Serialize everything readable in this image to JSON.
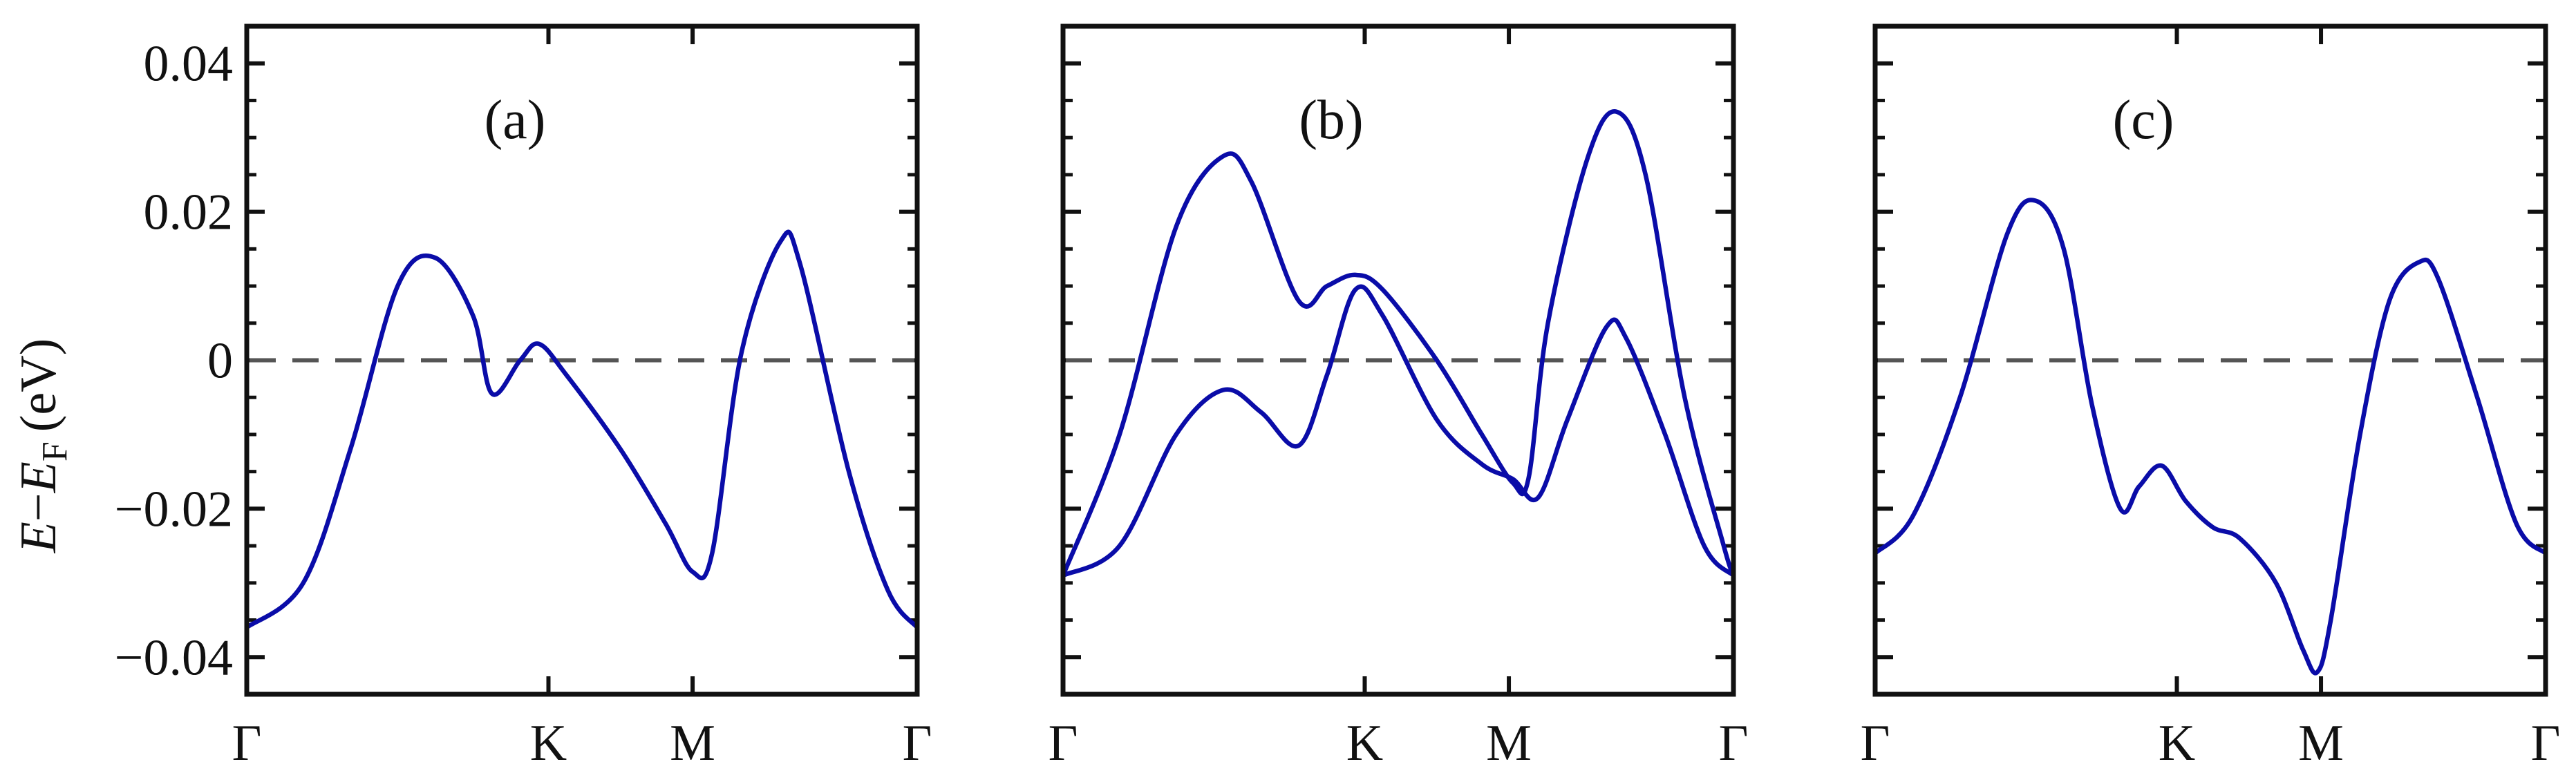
{
  "y_axis_label": {
    "E": "E",
    "minus": "−",
    "EF": "E",
    "F_sub": "F",
    "unit": "(eV)"
  },
  "chart_data": [
    {
      "type": "line",
      "panel_label": "(a)",
      "x_ticks": [
        "Γ",
        "K",
        "M",
        "Γ"
      ],
      "y_ticks": [
        "0.04",
        "0.02",
        "0",
        "−0.02",
        "−0.04"
      ],
      "ylim": [
        -0.045,
        0.045
      ],
      "y_tick_values": [
        0.04,
        0.02,
        0,
        -0.02,
        -0.04
      ],
      "reference_line": {
        "y": 0,
        "style": "dashed"
      },
      "series": [
        {
          "values": [
            [
              0,
              -0.036
            ],
            [
              0.3,
              -0.03
            ],
            [
              0.55,
              -0.012
            ],
            [
              0.8,
              0.01
            ],
            [
              1.0,
              0.0138
            ],
            [
              1.2,
              0.006
            ],
            [
              1.3,
              -0.0045
            ],
            [
              1.45,
              0.0
            ],
            [
              1.55,
              0.0022
            ],
            [
              1.7,
              -0.002
            ],
            [
              2.0,
              -0.012
            ],
            [
              2.25,
              -0.022
            ],
            [
              2.4,
              -0.0285
            ],
            [
              2.5,
              -0.026
            ],
            [
              2.65,
              0.001
            ],
            [
              2.85,
              0.016
            ],
            [
              2.95,
              0.013
            ],
            [
              3.2,
              -0.015
            ],
            [
              3.4,
              -0.031
            ],
            [
              3.55,
              -0.036
            ]
          ]
        }
      ]
    },
    {
      "type": "line",
      "panel_label": "(b)",
      "x_ticks": [
        "Γ",
        "K",
        "M",
        "Γ"
      ],
      "y_ticks": [
        "0.04",
        "0.02",
        "0",
        "−0.02",
        "−0.04"
      ],
      "ylim": [
        -0.045,
        0.045
      ],
      "y_tick_values": [
        0.04,
        0.02,
        0,
        -0.02,
        -0.04
      ],
      "reference_line": {
        "y": 0,
        "style": "dashed"
      },
      "series": [
        {
          "values": [
            [
              0,
              -0.029
            ],
            [
              0.3,
              -0.01
            ],
            [
              0.6,
              0.018
            ],
            [
              0.85,
              0.0275
            ],
            [
              1.0,
              0.024
            ],
            [
              1.25,
              0.008
            ],
            [
              1.4,
              0.01
            ],
            [
              1.55,
              0.0115
            ],
            [
              1.7,
              0.0095
            ],
            [
              2.0,
              0.0
            ],
            [
              2.25,
              -0.01
            ],
            [
              2.42,
              -0.0165
            ],
            [
              2.5,
              -0.016
            ],
            [
              2.6,
              0.005
            ],
            [
              2.8,
              0.027
            ],
            [
              2.95,
              0.0335
            ],
            [
              3.1,
              0.025
            ],
            [
              3.3,
              -0.005
            ],
            [
              3.5,
              -0.025
            ],
            [
              3.55,
              -0.029
            ]
          ]
        },
        {
          "values": [
            [
              0,
              -0.029
            ],
            [
              0.3,
              -0.025
            ],
            [
              0.6,
              -0.01
            ],
            [
              0.85,
              -0.004
            ],
            [
              1.05,
              -0.007
            ],
            [
              1.25,
              -0.0115
            ],
            [
              1.4,
              -0.002
            ],
            [
              1.55,
              0.0095
            ],
            [
              1.7,
              0.006
            ],
            [
              2.0,
              -0.008
            ],
            [
              2.25,
              -0.014
            ],
            [
              2.42,
              -0.016
            ],
            [
              2.55,
              -0.0185
            ],
            [
              2.7,
              -0.008
            ],
            [
              2.9,
              0.0045
            ],
            [
              3.0,
              0.003
            ],
            [
              3.2,
              -0.01
            ],
            [
              3.4,
              -0.025
            ],
            [
              3.55,
              -0.029
            ]
          ]
        }
      ]
    },
    {
      "type": "line",
      "panel_label": "(c)",
      "x_ticks": [
        "Γ",
        "K",
        "M",
        "Γ"
      ],
      "y_ticks": [
        "0.04",
        "0.02",
        "0",
        "−0.02",
        "−0.04"
      ],
      "ylim": [
        -0.045,
        0.045
      ],
      "y_tick_values": [
        0.04,
        0.02,
        0,
        -0.02,
        -0.04
      ],
      "reference_line": {
        "y": 0,
        "style": "dashed"
      },
      "series": [
        {
          "values": [
            [
              0,
              -0.026
            ],
            [
              0.2,
              -0.021
            ],
            [
              0.45,
              -0.005
            ],
            [
              0.7,
              0.017
            ],
            [
              0.85,
              0.0215
            ],
            [
              1.0,
              0.015
            ],
            [
              1.15,
              -0.006
            ],
            [
              1.3,
              -0.02
            ],
            [
              1.4,
              -0.017
            ],
            [
              1.52,
              -0.0142
            ],
            [
              1.65,
              -0.019
            ],
            [
              1.8,
              -0.0225
            ],
            [
              1.95,
              -0.024
            ],
            [
              2.15,
              -0.03
            ],
            [
              2.3,
              -0.039
            ],
            [
              2.38,
              -0.042
            ],
            [
              2.45,
              -0.035
            ],
            [
              2.6,
              -0.01
            ],
            [
              2.75,
              0.008
            ],
            [
              2.9,
              0.0132
            ],
            [
              3.0,
              0.011
            ],
            [
              3.2,
              -0.005
            ],
            [
              3.4,
              -0.022
            ],
            [
              3.55,
              -0.026
            ]
          ]
        }
      ]
    }
  ]
}
